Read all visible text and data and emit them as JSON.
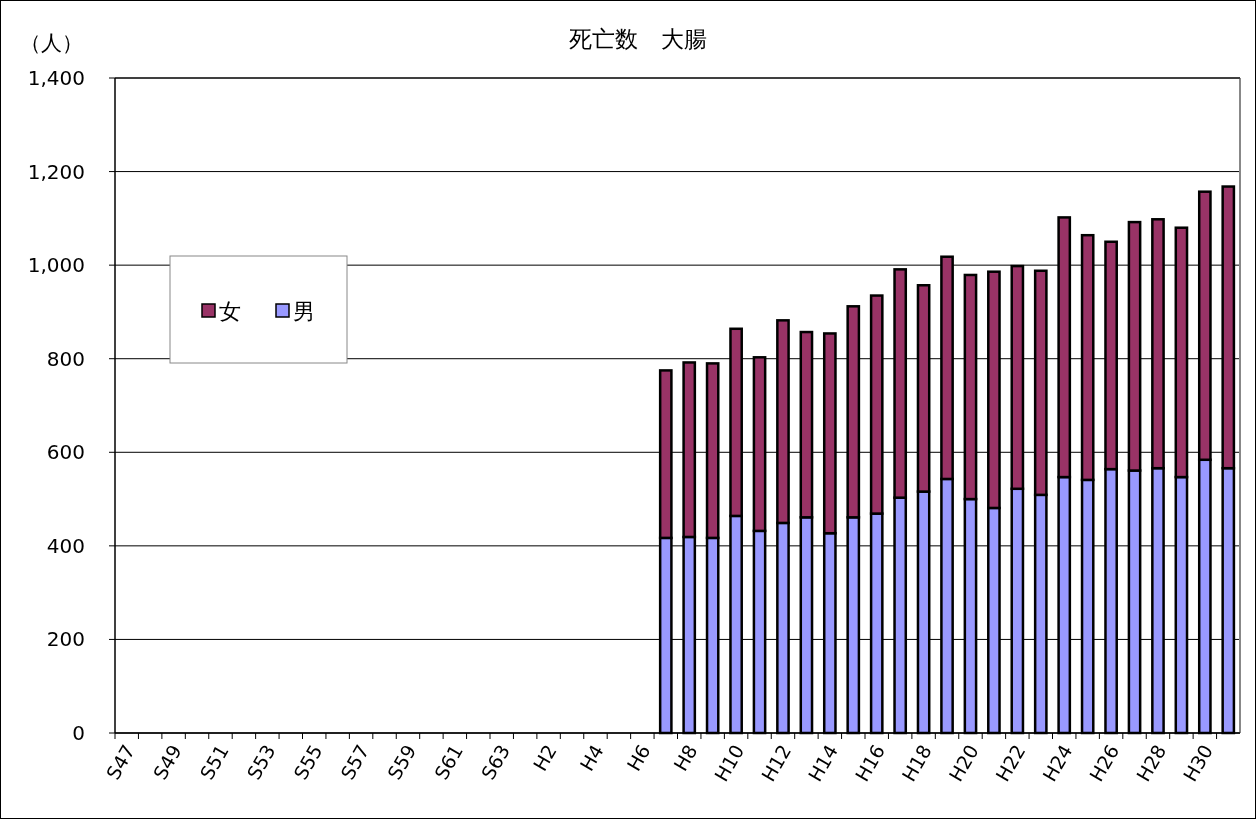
{
  "chart_data": {
    "type": "bar",
    "title": "死亡数　大腸",
    "ylabel": "（人）",
    "categories": [
      "S47",
      null,
      "S49",
      null,
      "S51",
      null,
      "S53",
      null,
      "S55",
      null,
      "S57",
      null,
      "S59",
      null,
      "S61",
      null,
      "S63",
      null,
      "H2",
      null,
      "H4",
      null,
      "H6",
      null,
      "H8",
      null,
      "H10",
      null,
      "H12",
      null,
      "H14",
      null,
      "H16",
      null,
      "H18",
      null,
      "H20",
      null,
      "H22",
      null,
      "H24",
      null,
      "H26",
      null,
      "H28",
      null,
      "H30",
      null
    ],
    "stacked": true,
    "series": [
      {
        "name": "男",
        "color": "#9999ff",
        "values": [
          null,
          null,
          null,
          null,
          null,
          null,
          null,
          null,
          null,
          null,
          null,
          null,
          null,
          null,
          null,
          null,
          null,
          null,
          null,
          null,
          null,
          null,
          null,
          417,
          419,
          417,
          464,
          432,
          449,
          461,
          427,
          461,
          469,
          503,
          516,
          543,
          500,
          481,
          522,
          509,
          547,
          541,
          564,
          561,
          566,
          547,
          584,
          566
        ]
      },
      {
        "name": "女",
        "color": "#993366",
        "values": [
          null,
          null,
          null,
          null,
          null,
          null,
          null,
          null,
          null,
          null,
          null,
          null,
          null,
          null,
          null,
          null,
          null,
          null,
          null,
          null,
          null,
          null,
          null,
          358,
          373,
          373,
          400,
          371,
          433,
          396,
          427,
          451,
          466,
          488,
          441,
          475,
          479,
          505,
          476,
          479,
          555,
          523,
          486,
          531,
          532,
          533,
          573,
          602
        ]
      }
    ],
    "ylim": [
      0,
      1400
    ],
    "yticks": [
      0,
      200,
      400,
      600,
      800,
      {
        "value": 1000,
        "label": "1,000"
      },
      {
        "value": 1200,
        "label": "1,200"
      },
      {
        "value": 1400,
        "label": "1,400"
      }
    ],
    "grid": "y",
    "legend": "left"
  }
}
